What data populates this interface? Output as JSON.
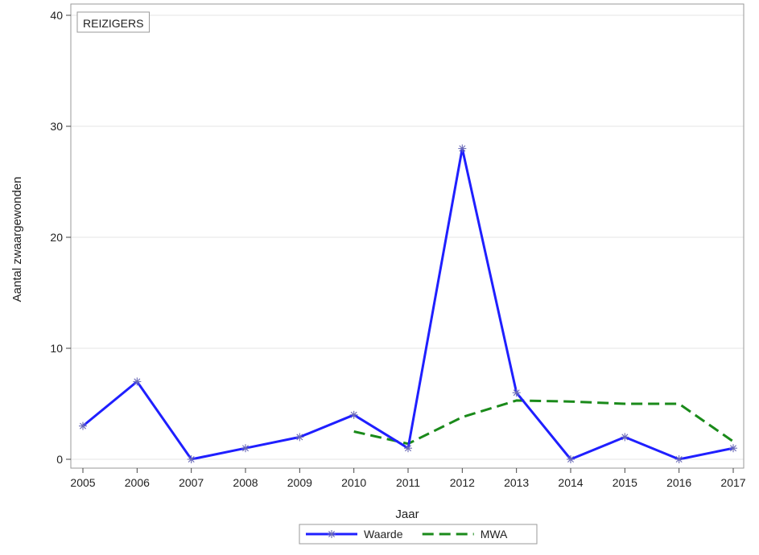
{
  "chart_data": {
    "type": "line",
    "inset_label": "REIZIGERS",
    "xlabel": "Jaar",
    "ylabel": "Aantal zwaargewonden",
    "x": [
      2005,
      2006,
      2007,
      2008,
      2009,
      2010,
      2011,
      2012,
      2013,
      2014,
      2015,
      2016,
      2017
    ],
    "xticks": [
      "2005",
      "2006",
      "2007",
      "2008",
      "2009",
      "2010",
      "2011",
      "2012",
      "2013",
      "2014",
      "2015",
      "2016",
      "2017"
    ],
    "ylim": [
      0,
      40
    ],
    "yticks": [
      "0",
      "10",
      "20",
      "30",
      "40"
    ],
    "ytick_values": [
      0,
      10,
      20,
      30,
      40
    ],
    "grid": "horizontal",
    "legend_position": "bottom",
    "series": [
      {
        "name": "Waarde",
        "color": "#1f1fff",
        "style": "solid",
        "marker": "asterisk",
        "x": [
          2005,
          2006,
          2007,
          2008,
          2009,
          2010,
          2011,
          2012,
          2013,
          2014,
          2015,
          2016,
          2017
        ],
        "values": [
          3,
          7,
          0,
          1,
          2,
          4,
          1,
          28,
          6,
          0,
          2,
          0,
          1
        ]
      },
      {
        "name": "MWA",
        "color": "#1a8a1a",
        "style": "dashed",
        "marker": "none",
        "x": [
          2010,
          2011,
          2012,
          2013,
          2014,
          2015,
          2016,
          2017
        ],
        "values": [
          2.5,
          1.4,
          3.8,
          5.3,
          5.2,
          5.0,
          5.0,
          1.6
        ]
      }
    ]
  }
}
